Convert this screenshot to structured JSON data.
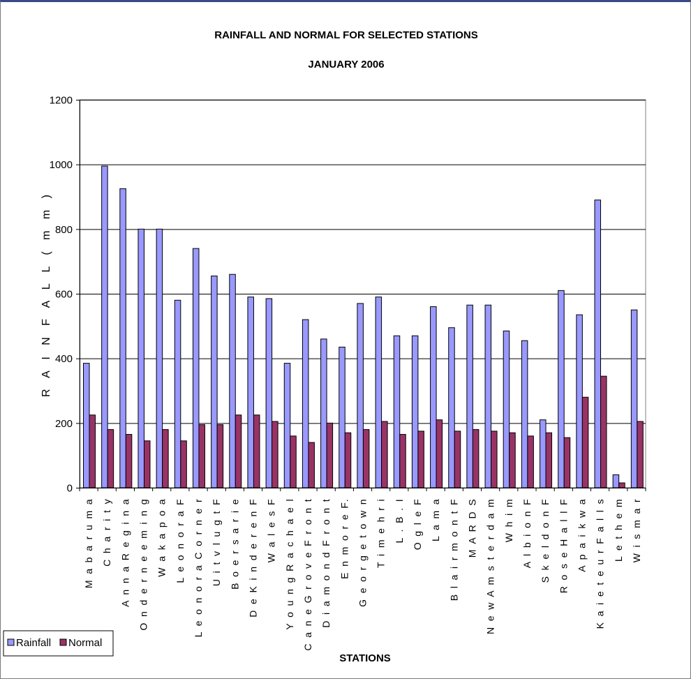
{
  "chart_data": {
    "type": "bar",
    "title": "RAINFALL AND NORMAL FOR SELECTED STATIONS",
    "subtitle": "JANUARY 2006",
    "xlabel": "STATIONS",
    "ylabel": "R A I N F A L L   ( m m )",
    "ylim": [
      0,
      1200
    ],
    "yticks": [
      "0",
      "200",
      "400",
      "600",
      "800",
      "1000",
      "1200"
    ],
    "grid": true,
    "legend_placement": "bottom-left",
    "categories": [
      "M a b a r u m a",
      "C h a r i t y",
      "A n n a R e g i n a",
      "O n d e r n e e m i n g",
      "W a k a p o a",
      "L e o n o r a F",
      "L e o n o r a C o r n e r",
      "U i t v l u g t F",
      "B o e r s a r i e",
      "D e K i n d e r e n F",
      "W a l e s F",
      "Y o u n g R a c h a e l",
      "C a n e G r o v e F r o n t",
      "D i a m o n d F r o n t",
      "E n m o r e F.",
      "G e o r g e t o w n",
      "T i m e h r i",
      "L . B . I",
      "O g l e F",
      "L a m a",
      "B l a i r m o n t F",
      "M A R D S",
      "N e w A m s t e r d a m",
      "W h i m",
      "A l b i o n F",
      "S k e l d o n F",
      "R o s e H a l l F",
      "A p a i k w a",
      "K a i e t e u r F a l l s",
      "L e t h e m",
      "W i s m a r"
    ],
    "series": [
      {
        "name": "Rainfall",
        "color": "#9999ff",
        "values": [
          385,
          995,
          925,
          800,
          800,
          580,
          740,
          655,
          660,
          590,
          585,
          385,
          520,
          460,
          435,
          570,
          590,
          470,
          470,
          560,
          495,
          565,
          565,
          485,
          455,
          210,
          610,
          535,
          890,
          40,
          550
        ]
      },
      {
        "name": "Normal",
        "color": "#993366",
        "values": [
          225,
          180,
          165,
          145,
          180,
          145,
          195,
          195,
          225,
          225,
          205,
          160,
          140,
          200,
          170,
          180,
          205,
          165,
          175,
          210,
          175,
          180,
          175,
          170,
          160,
          170,
          155,
          280,
          345,
          15,
          205
        ]
      }
    ]
  }
}
